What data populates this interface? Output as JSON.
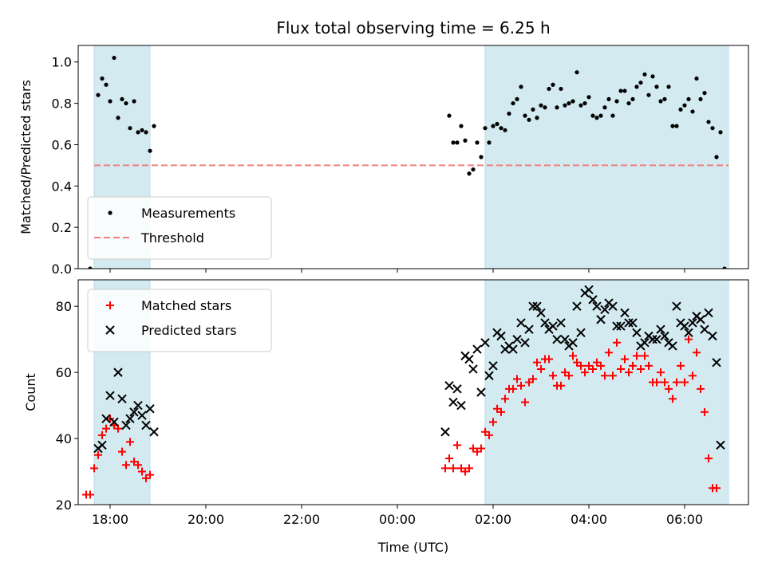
{
  "figure": {
    "title": "Flux total observing time = 6.25 h",
    "xlabel": "Time (UTC)"
  },
  "chart_data": [
    {
      "type": "scatter",
      "ylabel": "Matched/Predicted stars",
      "xlim": [
        "17:20",
        "07:20"
      ],
      "ylim": [
        0,
        1.08
      ],
      "yticks": [
        "0.0",
        "0.2",
        "0.4",
        "0.6",
        "0.8",
        "1.0"
      ],
      "shaded_spans": [
        [
          "17:40",
          "18:50"
        ],
        [
          "01:50",
          "06:55"
        ]
      ],
      "shade_color": "#d3eaf1",
      "threshold": {
        "name": "Threshold",
        "value": 0.5,
        "from": "17:40",
        "to": "06:55",
        "color": "#f08080"
      },
      "legend": "lower-left",
      "series": [
        {
          "name": "Measurements",
          "marker": "dot",
          "color": "#000000",
          "points": [
            [
              "17:35",
              0.0
            ],
            [
              "17:45",
              0.84
            ],
            [
              "17:50",
              0.92
            ],
            [
              "17:55",
              0.89
            ],
            [
              "18:00",
              0.81
            ],
            [
              "18:05",
              1.02
            ],
            [
              "18:10",
              0.73
            ],
            [
              "18:15",
              0.82
            ],
            [
              "18:20",
              0.8
            ],
            [
              "18:25",
              0.68
            ],
            [
              "18:30",
              0.81
            ],
            [
              "18:35",
              0.66
            ],
            [
              "18:40",
              0.67
            ],
            [
              "18:45",
              0.66
            ],
            [
              "18:50",
              0.57
            ],
            [
              "18:55",
              0.69
            ],
            [
              "01:05",
              0.74
            ],
            [
              "01:10",
              0.61
            ],
            [
              "01:15",
              0.61
            ],
            [
              "01:20",
              0.69
            ],
            [
              "01:25",
              0.62
            ],
            [
              "01:30",
              0.46
            ],
            [
              "01:35",
              0.48
            ],
            [
              "01:40",
              0.61
            ],
            [
              "01:45",
              0.54
            ],
            [
              "01:50",
              0.68
            ],
            [
              "01:55",
              0.61
            ],
            [
              "02:00",
              0.69
            ],
            [
              "02:05",
              0.7
            ],
            [
              "02:10",
              0.68
            ],
            [
              "02:15",
              0.67
            ],
            [
              "02:20",
              0.75
            ],
            [
              "02:25",
              0.8
            ],
            [
              "02:30",
              0.82
            ],
            [
              "02:35",
              0.88
            ],
            [
              "02:40",
              0.74
            ],
            [
              "02:45",
              0.72
            ],
            [
              "02:50",
              0.77
            ],
            [
              "02:55",
              0.73
            ],
            [
              "03:00",
              0.79
            ],
            [
              "03:05",
              0.78
            ],
            [
              "03:10",
              0.87
            ],
            [
              "03:15",
              0.89
            ],
            [
              "03:20",
              0.78
            ],
            [
              "03:25",
              0.87
            ],
            [
              "03:30",
              0.79
            ],
            [
              "03:35",
              0.8
            ],
            [
              "03:40",
              0.81
            ],
            [
              "03:45",
              0.95
            ],
            [
              "03:50",
              0.79
            ],
            [
              "03:55",
              0.8
            ],
            [
              "04:00",
              0.83
            ],
            [
              "04:05",
              0.74
            ],
            [
              "04:10",
              0.73
            ],
            [
              "04:15",
              0.74
            ],
            [
              "04:20",
              0.78
            ],
            [
              "04:25",
              0.82
            ],
            [
              "04:30",
              0.74
            ],
            [
              "04:35",
              0.81
            ],
            [
              "04:40",
              0.86
            ],
            [
              "04:45",
              0.86
            ],
            [
              "04:50",
              0.8
            ],
            [
              "04:55",
              0.82
            ],
            [
              "05:00",
              0.88
            ],
            [
              "05:05",
              0.9
            ],
            [
              "05:10",
              0.94
            ],
            [
              "05:15",
              0.84
            ],
            [
              "05:20",
              0.93
            ],
            [
              "05:25",
              0.88
            ],
            [
              "05:30",
              0.81
            ],
            [
              "05:35",
              0.82
            ],
            [
              "05:40",
              0.88
            ],
            [
              "05:45",
              0.69
            ],
            [
              "05:50",
              0.69
            ],
            [
              "05:55",
              0.77
            ],
            [
              "06:00",
              0.79
            ],
            [
              "06:05",
              0.82
            ],
            [
              "06:10",
              0.76
            ],
            [
              "06:15",
              0.92
            ],
            [
              "06:20",
              0.82
            ],
            [
              "06:25",
              0.85
            ],
            [
              "06:30",
              0.71
            ],
            [
              "06:35",
              0.68
            ],
            [
              "06:40",
              0.54
            ],
            [
              "06:45",
              0.66
            ],
            [
              "06:50",
              0.0
            ]
          ]
        }
      ]
    },
    {
      "type": "scatter",
      "ylabel": "Count",
      "xlim": [
        "17:20",
        "07:20"
      ],
      "ylim": [
        20,
        88
      ],
      "yticks": [
        "20",
        "40",
        "60",
        "80"
      ],
      "xticks": [
        "18:00",
        "20:00",
        "22:00",
        "00:00",
        "02:00",
        "04:00",
        "06:00"
      ],
      "shaded_spans": [
        [
          "17:40",
          "18:50"
        ],
        [
          "01:50",
          "06:55"
        ]
      ],
      "shade_color": "#d3eaf1",
      "legend": "top-left",
      "series": [
        {
          "name": "Matched stars",
          "marker": "plus",
          "color": "#ff0000",
          "points": [
            [
              "17:30",
              23
            ],
            [
              "17:35",
              23
            ],
            [
              "17:40",
              31
            ],
            [
              "17:45",
              35
            ],
            [
              "17:50",
              41
            ],
            [
              "17:55",
              43
            ],
            [
              "18:00",
              46
            ],
            [
              "18:05",
              44
            ],
            [
              "18:10",
              43
            ],
            [
              "18:15",
              36
            ],
            [
              "18:20",
              32
            ],
            [
              "18:25",
              39
            ],
            [
              "18:30",
              33
            ],
            [
              "18:35",
              32
            ],
            [
              "18:40",
              30
            ],
            [
              "18:45",
              28
            ],
            [
              "18:50",
              29
            ],
            [
              "01:00",
              31
            ],
            [
              "01:05",
              34
            ],
            [
              "01:10",
              31
            ],
            [
              "01:15",
              38
            ],
            [
              "01:20",
              31
            ],
            [
              "01:25",
              30
            ],
            [
              "01:30",
              31
            ],
            [
              "01:35",
              37
            ],
            [
              "01:40",
              36
            ],
            [
              "01:45",
              37
            ],
            [
              "01:50",
              42
            ],
            [
              "01:55",
              41
            ],
            [
              "02:00",
              45
            ],
            [
              "02:05",
              49
            ],
            [
              "02:10",
              48
            ],
            [
              "02:15",
              52
            ],
            [
              "02:20",
              55
            ],
            [
              "02:25",
              55
            ],
            [
              "02:30",
              58
            ],
            [
              "02:35",
              56
            ],
            [
              "02:40",
              51
            ],
            [
              "02:45",
              57
            ],
            [
              "02:50",
              58
            ],
            [
              "02:55",
              63
            ],
            [
              "03:00",
              61
            ],
            [
              "03:05",
              64
            ],
            [
              "03:10",
              64
            ],
            [
              "03:15",
              59
            ],
            [
              "03:20",
              56
            ],
            [
              "03:25",
              56
            ],
            [
              "03:30",
              60
            ],
            [
              "03:35",
              59
            ],
            [
              "03:40",
              65
            ],
            [
              "03:45",
              63
            ],
            [
              "03:50",
              62
            ],
            [
              "03:55",
              60
            ],
            [
              "04:00",
              62
            ],
            [
              "04:05",
              61
            ],
            [
              "04:10",
              63
            ],
            [
              "04:15",
              62
            ],
            [
              "04:20",
              59
            ],
            [
              "04:25",
              66
            ],
            [
              "04:30",
              59
            ],
            [
              "04:35",
              69
            ],
            [
              "04:40",
              61
            ],
            [
              "04:45",
              64
            ],
            [
              "04:50",
              60
            ],
            [
              "04:55",
              62
            ],
            [
              "05:00",
              65
            ],
            [
              "05:05",
              61
            ],
            [
              "05:10",
              65
            ],
            [
              "05:15",
              62
            ],
            [
              "05:20",
              57
            ],
            [
              "05:25",
              57
            ],
            [
              "05:30",
              60
            ],
            [
              "05:35",
              57
            ],
            [
              "05:40",
              55
            ],
            [
              "05:45",
              52
            ],
            [
              "05:50",
              57
            ],
            [
              "05:55",
              62
            ],
            [
              "06:00",
              57
            ],
            [
              "06:05",
              70
            ],
            [
              "06:10",
              59
            ],
            [
              "06:15",
              66
            ],
            [
              "06:20",
              55
            ],
            [
              "06:25",
              48
            ],
            [
              "06:30",
              34
            ],
            [
              "06:35",
              25
            ],
            [
              "06:40",
              25
            ]
          ]
        },
        {
          "name": "Predicted stars",
          "marker": "x",
          "color": "#000000",
          "points": [
            [
              "17:45",
              37
            ],
            [
              "17:50",
              38
            ],
            [
              "17:55",
              46
            ],
            [
              "18:00",
              53
            ],
            [
              "18:05",
              45
            ],
            [
              "18:10",
              60
            ],
            [
              "18:15",
              52
            ],
            [
              "18:20",
              44
            ],
            [
              "18:25",
              46
            ],
            [
              "18:30",
              48
            ],
            [
              "18:35",
              50
            ],
            [
              "18:40",
              47
            ],
            [
              "18:45",
              44
            ],
            [
              "18:50",
              49
            ],
            [
              "18:55",
              42
            ],
            [
              "01:00",
              42
            ],
            [
              "01:05",
              56
            ],
            [
              "01:10",
              51
            ],
            [
              "01:15",
              55
            ],
            [
              "01:20",
              50
            ],
            [
              "01:25",
              65
            ],
            [
              "01:30",
              64
            ],
            [
              "01:35",
              61
            ],
            [
              "01:40",
              67
            ],
            [
              "01:45",
              54
            ],
            [
              "01:50",
              69
            ],
            [
              "01:55",
              59
            ],
            [
              "02:00",
              62
            ],
            [
              "02:05",
              72
            ],
            [
              "02:10",
              71
            ],
            [
              "02:15",
              67
            ],
            [
              "02:20",
              68
            ],
            [
              "02:25",
              67
            ],
            [
              "02:30",
              70
            ],
            [
              "02:35",
              75
            ],
            [
              "02:40",
              69
            ],
            [
              "02:45",
              73
            ],
            [
              "02:50",
              80
            ],
            [
              "02:55",
              80
            ],
            [
              "03:00",
              78
            ],
            [
              "03:05",
              75
            ],
            [
              "03:10",
              73
            ],
            [
              "03:15",
              74
            ],
            [
              "03:20",
              70
            ],
            [
              "03:25",
              75
            ],
            [
              "03:30",
              70
            ],
            [
              "03:35",
              68
            ],
            [
              "03:40",
              69
            ],
            [
              "03:45",
              80
            ],
            [
              "03:50",
              72
            ],
            [
              "03:55",
              84
            ],
            [
              "04:00",
              85
            ],
            [
              "04:05",
              82
            ],
            [
              "04:10",
              80
            ],
            [
              "04:15",
              76
            ],
            [
              "04:20",
              79
            ],
            [
              "04:25",
              81
            ],
            [
              "04:30",
              80
            ],
            [
              "04:35",
              74
            ],
            [
              "04:40",
              74
            ],
            [
              "04:45",
              78
            ],
            [
              "04:50",
              75
            ],
            [
              "04:55",
              75
            ],
            [
              "05:00",
              72
            ],
            [
              "05:05",
              68
            ],
            [
              "05:10",
              69
            ],
            [
              "05:15",
              71
            ],
            [
              "05:20",
              70
            ],
            [
              "05:25",
              70
            ],
            [
              "05:30",
              73
            ],
            [
              "05:35",
              71
            ],
            [
              "05:40",
              69
            ],
            [
              "05:45",
              68
            ],
            [
              "05:50",
              80
            ],
            [
              "05:55",
              75
            ],
            [
              "06:00",
              74
            ],
            [
              "06:05",
              72
            ],
            [
              "06:10",
              75
            ],
            [
              "06:15",
              77
            ],
            [
              "06:20",
              76
            ],
            [
              "06:25",
              73
            ],
            [
              "06:30",
              78
            ],
            [
              "06:35",
              71
            ],
            [
              "06:40",
              63
            ],
            [
              "06:45",
              38
            ]
          ]
        }
      ]
    }
  ]
}
